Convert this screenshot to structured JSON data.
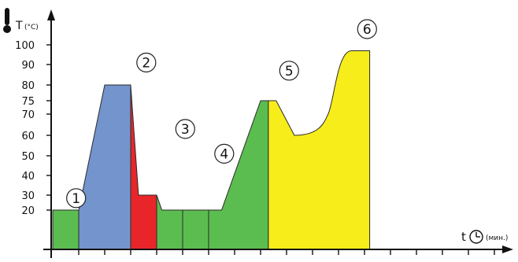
{
  "chart_data": {
    "type": "area",
    "title": "",
    "ylabel": "Т",
    "ylabel_unit": "(°C)",
    "xlabel": "t",
    "xlabel_unit": "(мин.)",
    "y_ticks": [
      "20",
      "30",
      "40",
      "50",
      "60",
      "70",
      "75",
      "80",
      "90",
      "100"
    ],
    "y_tick_values": [
      20,
      30,
      40,
      50,
      60,
      70,
      75,
      80,
      90,
      100
    ],
    "ylim": [
      0,
      110
    ],
    "x_units": 17,
    "grid": false,
    "legend": "none",
    "stages": [
      {
        "label": "1",
        "color": "#5bbd4f",
        "points": [
          [
            0,
            0
          ],
          [
            0,
            20
          ],
          [
            1,
            20
          ],
          [
            1,
            0
          ]
        ]
      },
      {
        "label": "2",
        "color": "#7394cc",
        "points": [
          [
            1,
            0
          ],
          [
            1,
            20
          ],
          [
            2,
            80
          ],
          [
            3,
            80
          ],
          [
            3,
            0
          ]
        ]
      },
      {
        "label": "3",
        "color": "#e8262a",
        "points": [
          [
            3,
            0
          ],
          [
            3,
            80
          ],
          [
            3.3,
            30
          ],
          [
            4,
            30
          ],
          [
            4,
            0
          ]
        ]
      },
      {
        "label": "4",
        "color": "#5bbd4f",
        "points": [
          [
            4,
            0
          ],
          [
            4,
            30
          ],
          [
            4.2,
            20
          ],
          [
            5,
            20
          ],
          [
            5,
            0
          ]
        ]
      },
      {
        "label": "",
        "color": "#5bbd4f",
        "points": [
          [
            5,
            0
          ],
          [
            5,
            20
          ],
          [
            6,
            20
          ],
          [
            6,
            0
          ]
        ]
      },
      {
        "label": "5",
        "color": "#5bbd4f",
        "points": [
          [
            6,
            0
          ],
          [
            6,
            20
          ],
          [
            6.5,
            20
          ],
          [
            8,
            75
          ],
          [
            8.3,
            75
          ],
          [
            8.3,
            0
          ]
        ]
      },
      {
        "label": "6",
        "color": "#f7ed1a",
        "points": [
          [
            8.3,
            0
          ],
          [
            8.3,
            75
          ],
          [
            8.6,
            75
          ],
          [
            9.3,
            60
          ],
          [
            10,
            60
          ],
          [
            10.6,
            70
          ],
          [
            11.5,
            97
          ],
          [
            12.2,
            97
          ],
          [
            12.2,
            0
          ]
        ]
      }
    ],
    "stage_label_positions": [
      [
        0.9,
        28
      ],
      [
        3.6,
        91
      ],
      [
        5.1,
        63
      ],
      [
        6.6,
        51
      ],
      [
        9.1,
        87
      ],
      [
        12.1,
        108
      ]
    ]
  }
}
